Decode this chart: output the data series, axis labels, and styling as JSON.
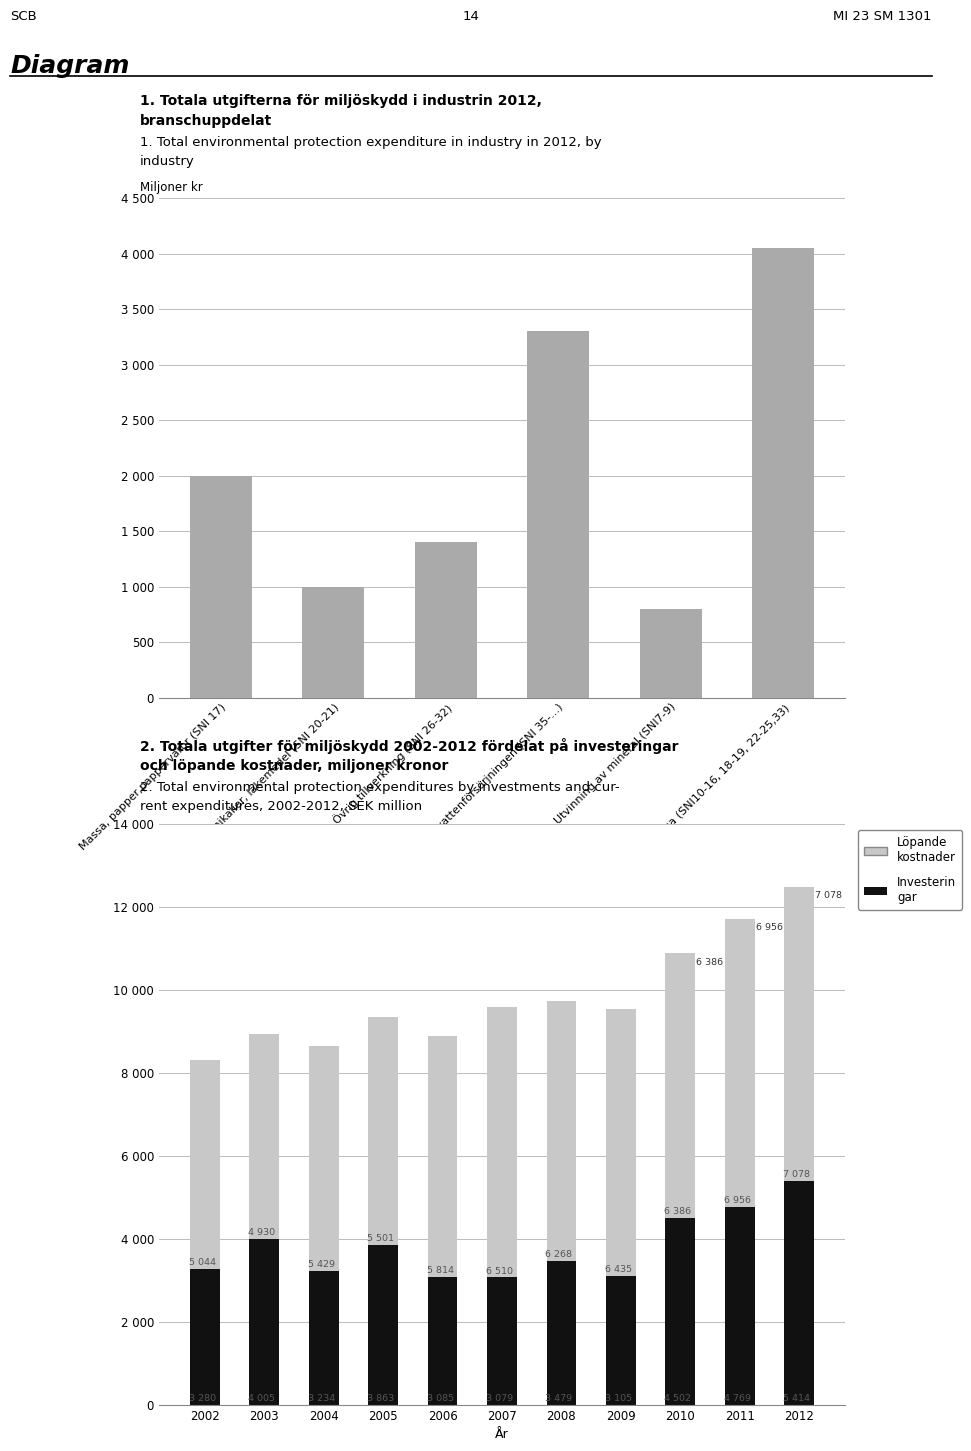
{
  "page_header_left": "SCB",
  "page_header_center": "14",
  "page_header_right": "MI 23 SM 1301",
  "section_title": "Diagram",
  "chart1": {
    "title_line1": "1. Totala utgifterna för miljöskydd i industrin 2012,",
    "title_line2": "branschuppdelat",
    "subtitle_line1": "1. Total environmental protection expenditure in industry in 2012, by",
    "subtitle_line2": "industry",
    "ylabel": "Miljoner kr",
    "categories": [
      "Massa, papper,pappervaror (SNI 17)",
      "Kemikalier, läkemedel (SNI 20-21)",
      "Övrig tillverkning (SNI 26-32)",
      "El- gas och värmeverk; vattenförsörjningen (SNI 35-...)",
      "Utvinning av mineral (SNI7-9)",
      "Övriga (SNI10-16, 18-19, 22-25,33)"
    ],
    "values": [
      2000,
      1000,
      1400,
      3300,
      800,
      4050
    ],
    "bar_color": "#aaaaaa",
    "ylim": [
      0,
      4500
    ],
    "yticks": [
      0,
      500,
      1000,
      1500,
      2000,
      2500,
      3000,
      3500,
      4000,
      4500
    ]
  },
  "chart2": {
    "title_line1": "2. Totala utgifter för miljöskydd 2002-2012 fördelat på investeringar",
    "title_line2": "och löpande kostnader, miljoner kronor",
    "subtitle_line1": "2. Total environmental protection expenditures by investments and cur-",
    "subtitle_line2": "rent expenditures, 2002-2012, SEK million",
    "xlabel": "År",
    "years": [
      2002,
      2003,
      2004,
      2005,
      2006,
      2007,
      2008,
      2009,
      2010,
      2011,
      2012
    ],
    "lopande": [
      5044,
      4930,
      5429,
      5501,
      5814,
      6510,
      6268,
      6435,
      6386,
      6956,
      7078
    ],
    "investeringar": [
      3280,
      4005,
      3234,
      3863,
      3085,
      3079,
      3479,
      3105,
      4502,
      4769,
      5414
    ],
    "color_lopande": "#c8c8c8",
    "color_invest": "#111111",
    "ylim": [
      0,
      14000
    ],
    "yticks": [
      0,
      2000,
      4000,
      6000,
      8000,
      10000,
      12000,
      14000
    ],
    "legend_lopande": "Löpande\nkostnader",
    "legend_invest": "Investerin\ngar"
  },
  "background_color": "#ffffff",
  "text_color": "#000000",
  "grid_color": "#bbbbbb"
}
